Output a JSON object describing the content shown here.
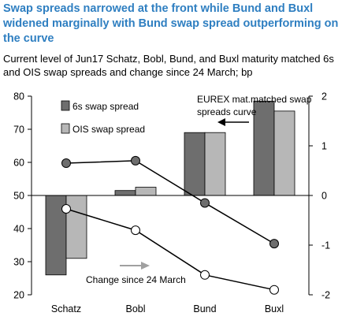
{
  "chart_data": {
    "type": "bar",
    "title": "Swap spreads narrowed at the front while Bund and Buxl widened marginally with Bund swap spread outperforming on the curve",
    "subtitle": "Current level of Jun17 Schatz, Bobl, Bund, and Buxl maturity matched 6s and OIS swap spreads and change since 24 March; bp",
    "categories": [
      "Schatz",
      "Bobl",
      "Bund",
      "Buxl"
    ],
    "bar_baseline": 50,
    "ylim_left": [
      20,
      80
    ],
    "yticks_left": [
      20,
      30,
      40,
      50,
      60,
      70,
      80
    ],
    "ylim_right": [
      -2,
      2
    ],
    "yticks_right": [
      -2,
      -1,
      0,
      1,
      2
    ],
    "series": [
      {
        "name": "6s swap spread",
        "axis": "left",
        "kind": "bar",
        "color": "#6e6e6e",
        "values": [
          26,
          51.5,
          69,
          78.5
        ]
      },
      {
        "name": "OIS swap spread",
        "axis": "left",
        "kind": "bar",
        "color": "#b7b7b7",
        "values": [
          31,
          52.5,
          69,
          75.5
        ]
      },
      {
        "axis": "right",
        "kind": "line",
        "marker_fill": "#6e6e6e",
        "values": [
          0.65,
          0.7,
          -0.15,
          -0.97
        ]
      },
      {
        "axis": "right",
        "kind": "line",
        "marker_fill": "#ffffff",
        "values": [
          -0.27,
          -0.7,
          -1.6,
          -1.9
        ]
      }
    ],
    "annotations": [
      {
        "text_lines": [
          "EUREX mat.matched swap",
          "spreads curve"
        ]
      },
      {
        "text": "Change since 24 March"
      }
    ]
  }
}
